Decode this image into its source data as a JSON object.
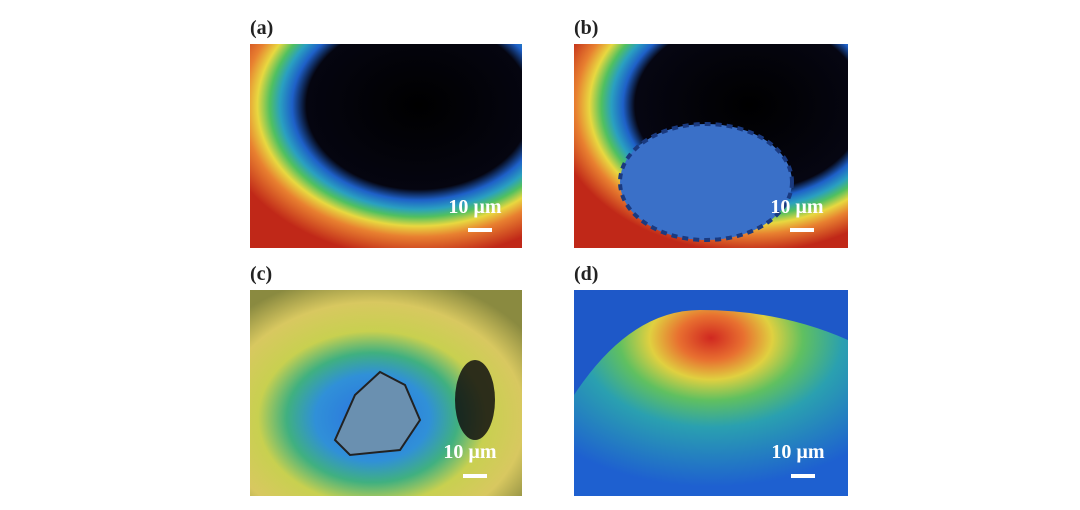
{
  "panels": [
    {
      "label": "(a)",
      "scale_bar": "10 µm"
    },
    {
      "label": "(b)",
      "scale_bar": "10 µm"
    },
    {
      "label": "(c)",
      "scale_bar": "10 µm"
    },
    {
      "label": "(d)",
      "scale_bar": "10 µm"
    }
  ]
}
